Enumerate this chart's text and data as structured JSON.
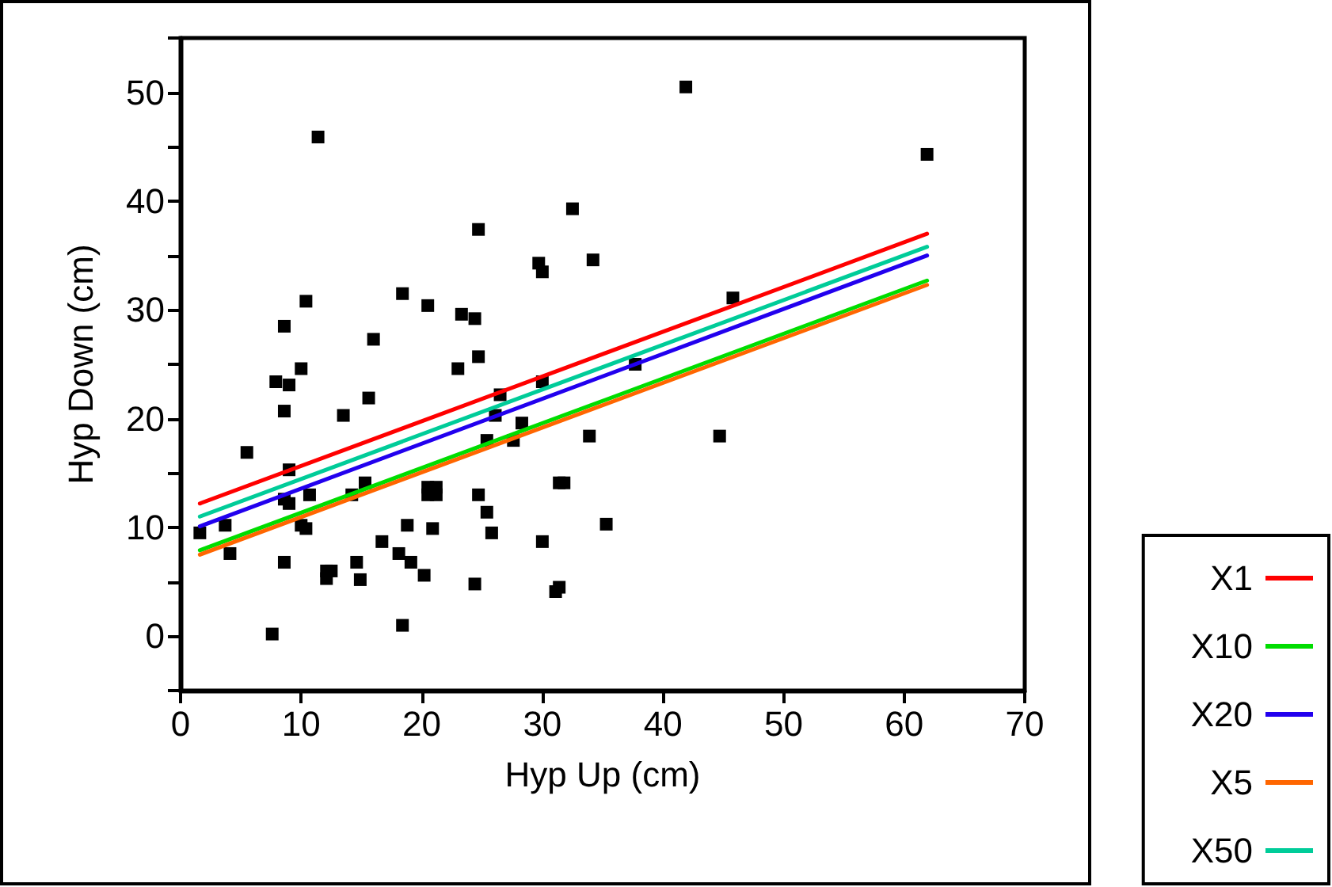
{
  "chart_data": {
    "type": "scatter",
    "xlabel": "Hyp Up (cm)",
    "ylabel": "Hyp Down (cm)",
    "xlim": [
      0,
      70
    ],
    "xticks": [
      0,
      10,
      20,
      30,
      40,
      50,
      60,
      70
    ],
    "ylim": [
      -5,
      55
    ],
    "yticks": [
      {
        "value": -5,
        "label": null
      },
      0,
      {
        "value": 5,
        "label": null
      },
      10,
      {
        "value": 15,
        "label": null
      },
      20,
      {
        "value": 25,
        "label": null
      },
      30,
      {
        "value": 35,
        "label": null
      },
      40,
      {
        "value": 45,
        "label": null
      },
      50,
      {
        "value": 55,
        "label": null
      }
    ],
    "grid": false,
    "legend": "bottom right",
    "series": [
      {
        "color": "#000000",
        "marker": "square",
        "x": [
          1.6,
          3.7,
          4.1,
          5.5,
          7.6,
          7.9,
          8.6,
          9.0,
          8.6,
          9.0,
          8.6,
          9.0,
          8.6,
          10.0,
          10.4,
          10.0,
          10.4,
          10.7,
          11.4,
          12.1,
          12.5,
          12.1,
          13.5,
          14.2,
          14.6,
          14.9,
          15.3,
          15.6,
          16.0,
          16.7,
          18.1,
          18.4,
          18.8,
          19.1,
          18.4,
          20.2,
          20.5,
          20.9,
          20.5,
          21.2,
          20.5,
          21.2,
          23.0,
          23.3,
          24.4,
          24.7,
          24.7,
          24.7,
          25.4,
          25.8,
          24.4,
          25.4,
          26.1,
          26.5,
          27.6,
          28.3,
          29.7,
          30.0,
          30.0,
          30.0,
          31.1,
          31.4,
          31.4,
          31.8,
          32.5,
          33.9,
          34.2,
          35.3,
          37.7,
          41.9,
          44.7,
          45.8,
          61.9
        ],
        "values": [
          9.5,
          10.2,
          7.6,
          16.9,
          0.2,
          23.4,
          28.5,
          23.1,
          20.7,
          15.3,
          12.6,
          12.2,
          6.8,
          24.6,
          30.8,
          10.2,
          9.9,
          13.0,
          45.9,
          6.0,
          6.0,
          5.3,
          20.3,
          13.0,
          6.8,
          5.2,
          14.1,
          21.9,
          27.3,
          8.7,
          7.6,
          31.5,
          10.2,
          6.8,
          1.0,
          5.6,
          30.4,
          9.9,
          13.0,
          13.0,
          13.7,
          13.7,
          24.6,
          29.6,
          29.2,
          37.4,
          25.7,
          13.0,
          11.4,
          9.5,
          4.8,
          18.0,
          20.3,
          22.2,
          18.0,
          19.6,
          34.3,
          33.5,
          23.4,
          8.7,
          4.1,
          4.5,
          14.1,
          14.1,
          39.3,
          18.4,
          34.6,
          10.3,
          25.0,
          50.5,
          18.4,
          31.1,
          44.3
        ]
      },
      {
        "type": "line",
        "name": "X1",
        "color": "#ff0000",
        "marker": "none",
        "line_style": "solid",
        "x": [
          1.6,
          61.9
        ],
        "values": [
          12.2,
          37.0
        ]
      },
      {
        "type": "line",
        "name": "X10",
        "color": "#00dd00",
        "marker": "none",
        "line_style": "solid",
        "x": [
          1.6,
          61.9
        ],
        "values": [
          7.9,
          32.7
        ]
      },
      {
        "type": "line",
        "name": "X20",
        "color": "#2200ee",
        "marker": "none",
        "line_style": "solid",
        "x": [
          1.6,
          61.9
        ],
        "values": [
          10.1,
          35.0
        ]
      },
      {
        "type": "line",
        "name": "X5",
        "color": "#ff6600",
        "marker": "none",
        "line_style": "solid",
        "x": [
          1.6,
          61.9
        ],
        "values": [
          7.5,
          32.3
        ]
      },
      {
        "type": "line",
        "name": "X50",
        "color": "#00cc99",
        "marker": "none",
        "line_style": "solid",
        "x": [
          1.6,
          61.9
        ],
        "values": [
          11.0,
          35.8
        ]
      }
    ]
  }
}
